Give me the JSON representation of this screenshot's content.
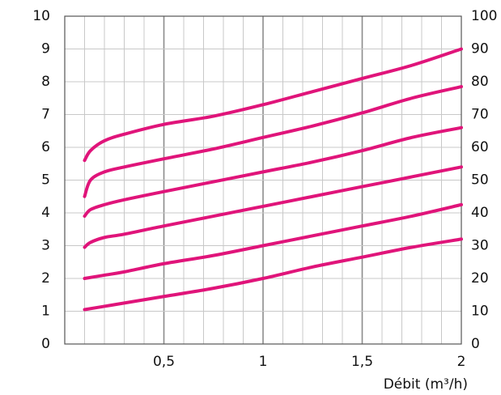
{
  "chart_data": {
    "type": "line",
    "title": "",
    "xlabel": "Débit (m³/h)",
    "ylabel": "",
    "ylabel_right": "",
    "xlim": [
      0,
      2
    ],
    "ylim": [
      0,
      10
    ],
    "ylim_right": [
      0,
      100
    ],
    "x_ticks": [
      "0,5",
      "1",
      "1,5",
      "2"
    ],
    "y_ticks_left": [
      "0",
      "1",
      "2",
      "3",
      "4",
      "5",
      "6",
      "7",
      "8",
      "9",
      "10"
    ],
    "y_ticks_right": [
      "0",
      "10",
      "20",
      "30",
      "40",
      "50",
      "60",
      "70",
      "80",
      "90",
      "100"
    ],
    "grid": true,
    "line_color": "#e0147a",
    "series": [
      {
        "x": [
          0.1,
          0.13,
          0.2,
          0.3,
          0.5,
          0.75,
          1.0,
          1.25,
          1.5,
          1.75,
          2.0
        ],
        "values": [
          5.6,
          5.9,
          6.2,
          6.4,
          6.7,
          6.95,
          7.3,
          7.7,
          8.1,
          8.5,
          9.0
        ]
      },
      {
        "x": [
          0.1,
          0.13,
          0.2,
          0.3,
          0.5,
          0.75,
          1.0,
          1.25,
          1.5,
          1.75,
          2.0
        ],
        "values": [
          4.5,
          5.0,
          5.25,
          5.4,
          5.65,
          5.95,
          6.3,
          6.65,
          7.05,
          7.5,
          7.85
        ]
      },
      {
        "x": [
          0.1,
          0.13,
          0.2,
          0.3,
          0.5,
          0.75,
          1.0,
          1.25,
          1.5,
          1.75,
          2.0
        ],
        "values": [
          3.9,
          4.1,
          4.25,
          4.4,
          4.65,
          4.95,
          5.25,
          5.55,
          5.9,
          6.3,
          6.6
        ]
      },
      {
        "x": [
          0.1,
          0.13,
          0.2,
          0.3,
          0.5,
          0.75,
          1.0,
          1.25,
          1.5,
          1.75,
          2.0
        ],
        "values": [
          2.95,
          3.1,
          3.25,
          3.35,
          3.6,
          3.9,
          4.2,
          4.5,
          4.8,
          5.1,
          5.4
        ]
      },
      {
        "x": [
          0.1,
          0.2,
          0.3,
          0.5,
          0.75,
          1.0,
          1.25,
          1.5,
          1.75,
          2.0
        ],
        "values": [
          2.0,
          2.1,
          2.2,
          2.45,
          2.7,
          3.0,
          3.3,
          3.6,
          3.9,
          4.25
        ]
      },
      {
        "x": [
          0.1,
          0.2,
          0.3,
          0.5,
          0.75,
          1.0,
          1.25,
          1.5,
          1.75,
          2.0
        ],
        "values": [
          1.05,
          1.15,
          1.25,
          1.45,
          1.7,
          2.0,
          2.35,
          2.65,
          2.95,
          3.2
        ]
      }
    ]
  }
}
